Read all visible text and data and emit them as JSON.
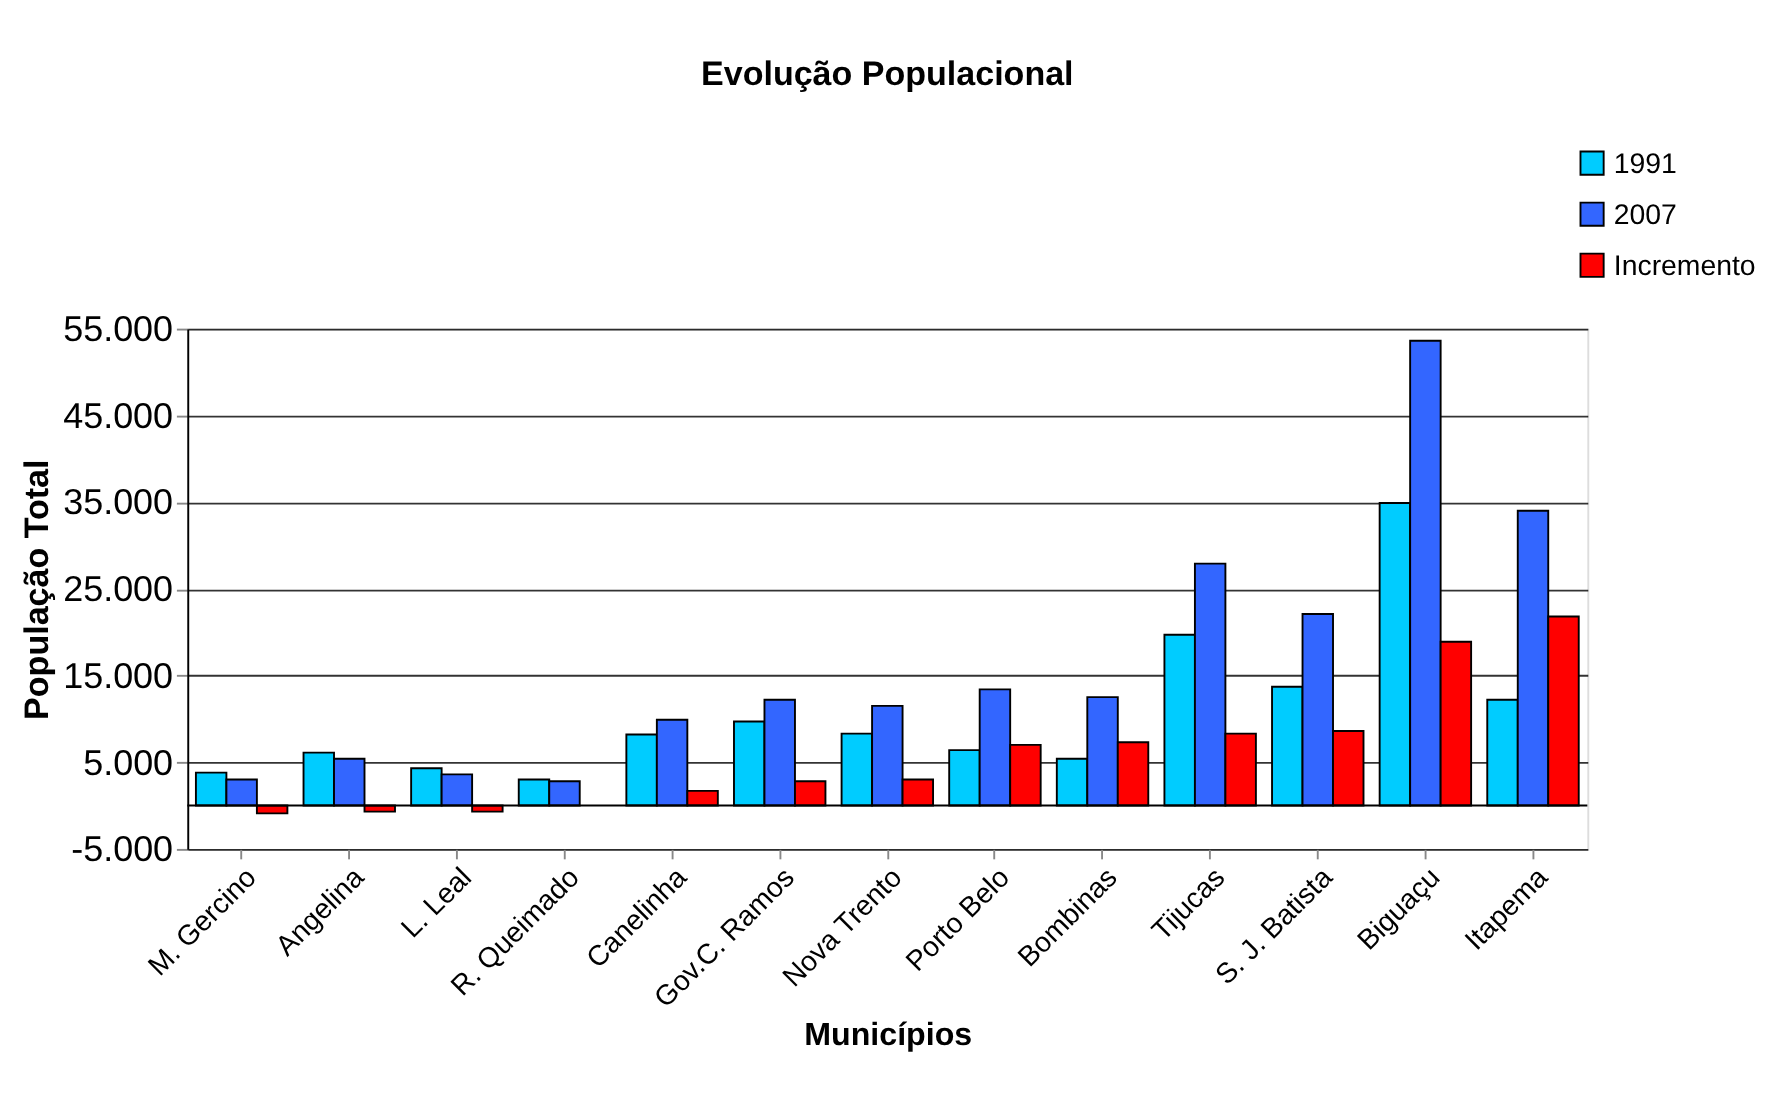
{
  "chart_data": {
    "type": "bar",
    "title": "Evolução Populacional",
    "xlabel": "Municípios",
    "ylabel": "População Total",
    "categories": [
      "M. Gercino",
      "Angelina",
      "L. Leal",
      "R. Queimado",
      "Canelinha",
      "Gov.C. Ramos",
      "Nova Trento",
      "Porto Belo",
      "Bombinas",
      "Tijucas",
      "S. J. Batista",
      "Biguaçu",
      "Itapema"
    ],
    "series": [
      {
        "name": "1991",
        "color": "#00ccff",
        "values": [
          3800,
          6100,
          4300,
          3000,
          8200,
          9700,
          8300,
          6400,
          5400,
          19700,
          13700,
          34900,
          12200
        ]
      },
      {
        "name": "2007",
        "color": "#3366ff",
        "values": [
          3000,
          5400,
          3600,
          2800,
          9900,
          12200,
          11500,
          13400,
          12500,
          27900,
          22100,
          53600,
          34000
        ]
      },
      {
        "name": "Incremento",
        "color": "#ff0000",
        "values": [
          -900,
          -700,
          -700,
          null,
          1700,
          2800,
          3000,
          7000,
          7300,
          8300,
          8600,
          18900,
          21800
        ]
      }
    ],
    "ylim": [
      -5000,
      55000
    ],
    "yticks": [
      {
        "value": -5000,
        "label": "-5.000"
      },
      {
        "value": 5000,
        "label": "5.000"
      },
      {
        "value": 15000,
        "label": "15.000"
      },
      {
        "value": 25000,
        "label": "25.000"
      },
      {
        "value": 35000,
        "label": "35.000"
      },
      {
        "value": 45000,
        "label": "45.000"
      },
      {
        "value": 55000,
        "label": "55.000"
      }
    ],
    "grid": "y",
    "legend": "top right"
  }
}
